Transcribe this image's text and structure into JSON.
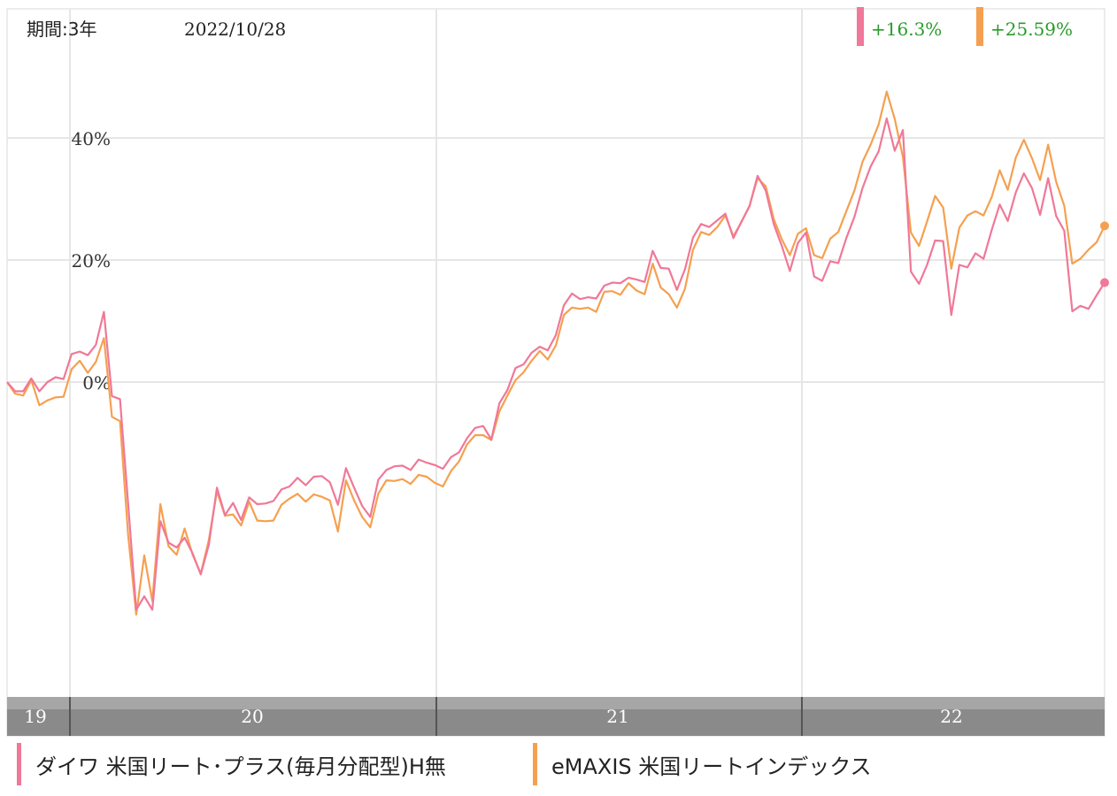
{
  "chart_data": {
    "type": "line",
    "period_label": "期間:3年",
    "date_label": "2022/10/28",
    "x_ticks": [
      "19",
      "20",
      "21",
      "22"
    ],
    "ylim": [
      -55,
      60
    ],
    "y_ticks": [
      {
        "value": 40,
        "label": "40%"
      },
      {
        "value": 20,
        "label": "20%"
      },
      {
        "value": 0,
        "label": "0%"
      }
    ],
    "grid": true,
    "series": [
      {
        "name": "ダイワ 米国リート･プラス(毎月分配型)H無",
        "color": "#f07898",
        "return_label": "+16.3%",
        "values": [
          0,
          -1.5,
          -1.5,
          0.6,
          -1.5,
          0,
          0.8,
          0.5,
          4.6,
          5,
          4.4,
          6.1,
          11.5,
          -2.3,
          -2.8,
          -20,
          -37.3,
          -35.1,
          -37.3,
          -22.8,
          -26.3,
          -27.1,
          -25.5,
          -28.1,
          -31.5,
          -26.7,
          -17.3,
          -21.8,
          -19.8,
          -22.6,
          -18.9,
          -20,
          -19.9,
          -19.5,
          -17.6,
          -17.1,
          -15.7,
          -16.9,
          -15.5,
          -15.4,
          -16.4,
          -20.1,
          -14.1,
          -17.3,
          -20.3,
          -22.1,
          -16,
          -14.4,
          -13.8,
          -13.7,
          -14.4,
          -12.7,
          -13.2,
          -13.6,
          -14.2,
          -12.3,
          -11.5,
          -9.2,
          -7.5,
          -7.2,
          -9.4,
          -3.5,
          -1.3,
          2.3,
          2.9,
          4.8,
          5.8,
          5.2,
          7.7,
          12.6,
          14.5,
          13.6,
          13.9,
          13.7,
          15.8,
          16.3,
          16.2,
          17.1,
          16.8,
          16.4,
          21.5,
          18.7,
          18.6,
          15.1,
          18.5,
          23.7,
          25.9,
          25.4,
          26.5,
          27.6,
          23.6,
          26.3,
          28.8,
          33.8,
          31.4,
          25.9,
          22.3,
          18.2,
          22.8,
          24.5,
          17.3,
          16.6,
          19.8,
          19.5,
          23.6,
          27.1,
          31.8,
          35.3,
          37.8,
          43.2,
          37.9,
          41.3,
          18.1,
          16.1,
          19.2,
          23.2,
          23.1,
          11,
          19.2,
          18.8,
          21.1,
          20.2,
          24.9,
          29.1,
          26.4,
          31.1,
          34.2,
          31.8,
          27.4,
          33.4,
          27.2,
          24.8,
          11.6,
          12.5,
          12,
          14.2,
          16.3
        ]
      },
      {
        "name": "eMAXIS 米国リートインデックス",
        "color": "#f5a050",
        "return_label": "+25.59%",
        "values": [
          0,
          -1.9,
          -2.2,
          0.3,
          -3.8,
          -3,
          -2.5,
          -2.4,
          2.1,
          3.5,
          1.5,
          3.3,
          7.2,
          -5.7,
          -6.4,
          -25.1,
          -38.1,
          -28.4,
          -35.9,
          -20,
          -26.9,
          -28.3,
          -24,
          -28.3,
          -31.4,
          -25.9,
          -17.9,
          -21.9,
          -21.7,
          -23.5,
          -19.6,
          -22.7,
          -22.8,
          -22.7,
          -20.1,
          -19.1,
          -18.3,
          -19.6,
          -18.4,
          -18.8,
          -19.4,
          -24.5,
          -16.1,
          -19.4,
          -22.1,
          -23.8,
          -18.3,
          -16.1,
          -16.2,
          -15.9,
          -16.7,
          -15.2,
          -15.5,
          -16.5,
          -17.1,
          -14.6,
          -13,
          -10.2,
          -8.7,
          -8.7,
          -9.5,
          -4.8,
          -2.2,
          0.3,
          1.6,
          3.5,
          5.1,
          3.7,
          6,
          11,
          12.2,
          12,
          12.2,
          11.5,
          14.8,
          14.9,
          14.3,
          16.2,
          15,
          14.4,
          19.4,
          15.5,
          14.4,
          12.2,
          15.3,
          21.7,
          24.6,
          24.1,
          25.4,
          27.3,
          23.9,
          26.2,
          28.9,
          33.4,
          32.1,
          26.7,
          23.4,
          20.8,
          24.3,
          25.2,
          20.8,
          20.3,
          23.5,
          24.6,
          28,
          31.4,
          36.1,
          38.9,
          42.2,
          47.6,
          43.1,
          36.9,
          24.5,
          22.3,
          26.3,
          30.5,
          28.6,
          18.6,
          25.3,
          27.3,
          28,
          27.3,
          30.3,
          34.7,
          31.5,
          36.8,
          39.7,
          36.7,
          33.1,
          38.9,
          32.8,
          28.9,
          19.4,
          20.2,
          21.7,
          22.9,
          25.6
        ]
      }
    ]
  }
}
